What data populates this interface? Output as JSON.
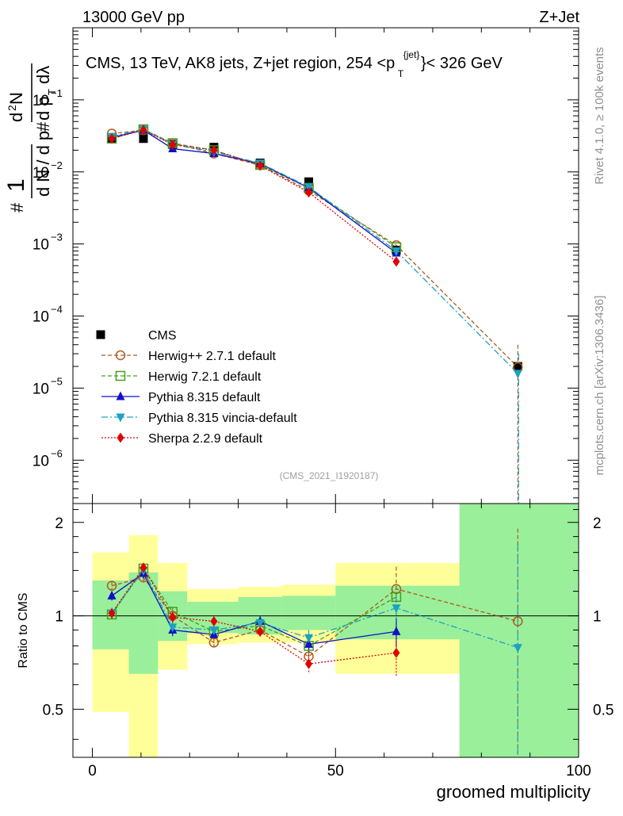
{
  "header": {
    "energy_label": "13000 GeV pp",
    "process_label": "Z+Jet"
  },
  "side_labels": {
    "rivet": "Rivet 4.1.0, ≥ 100k events",
    "mcplots": "mcplots.cern.ch [arXiv:1306.3436]"
  },
  "chart_data": {
    "type": "line",
    "title": "CMS, 13 TeV, AK8 jets, Z+jet region, 254 <p",
    "title_sup": "{jet}",
    "title_sub": "T",
    "title_tail": "}< 326 GeV",
    "analysis_tag": "(CMS_2021_I1920187)",
    "xlabel": "groomed multiplicity",
    "ylabel_main": "1/N dN/dpT d²N/dpT dλ",
    "ylabel_ratio": "Ratio to CMS",
    "xlim": [
      -4,
      100
    ],
    "ylim_main": [
      2.5e-07,
      1.0
    ],
    "ylim_ratio": [
      0.35,
      2.3
    ],
    "x_ticks": [
      "0",
      "50",
      "100"
    ],
    "y_ticks_main": [
      {
        "base": "10",
        "exp": "−1",
        "value": 0.1
      },
      {
        "base": "10",
        "exp": "−2",
        "value": 0.01
      },
      {
        "base": "10",
        "exp": "−3",
        "value": 0.001
      },
      {
        "base": "10",
        "exp": "−4",
        "value": 0.0001
      },
      {
        "base": "10",
        "exp": "−5",
        "value": 1e-05
      },
      {
        "base": "10",
        "exp": "−6",
        "value": 1e-06
      }
    ],
    "y_ticks_ratio": [
      {
        "label": "0.5",
        "value": 0.5
      },
      {
        "label": "1",
        "value": 1
      },
      {
        "label": "2",
        "value": 2
      }
    ],
    "legend_position": "middle-left",
    "data": {
      "name": "CMS",
      "x": [
        4,
        10.5,
        16.5,
        25,
        34.5,
        44.5,
        62.5,
        87.5
      ],
      "values": [
        0.029,
        0.029,
        0.024,
        0.022,
        0.0133,
        0.0073,
        0.00082,
        2e-05
      ]
    },
    "bands": [
      {
        "x0": 0,
        "x1": 7.5,
        "yl": 0.78,
        "yh": 1.3,
        "yyl": 0.49,
        "yyh": 1.6
      },
      {
        "x0": 7.5,
        "x1": 13.5,
        "yl": 0.65,
        "yh": 1.38,
        "yyl": 0.35,
        "yyh": 1.82
      },
      {
        "x0": 13.5,
        "x1": 19.5,
        "yl": 0.83,
        "yh": 1.2,
        "yyl": 0.67,
        "yyh": 1.48
      },
      {
        "x0": 19.5,
        "x1": 30,
        "yl": 0.88,
        "yh": 1.11,
        "yyl": 0.81,
        "yyh": 1.22
      },
      {
        "x0": 30,
        "x1": 39,
        "yl": 0.87,
        "yh": 1.15,
        "yyl": 0.82,
        "yyh": 1.24
      },
      {
        "x0": 39,
        "x1": 50,
        "yl": 0.9,
        "yh": 1.16,
        "yyl": 0.82,
        "yyh": 1.26
      },
      {
        "x0": 50,
        "x1": 75.5,
        "yl": 0.84,
        "yh": 1.25,
        "yyl": 0.65,
        "yyh": 1.48
      },
      {
        "x0": 75.5,
        "x1": 100,
        "yl": 0.35,
        "yh": 2.3,
        "yyl": 0.35,
        "yyh": 2.3
      }
    ],
    "series": [
      {
        "name": "Herwig++ 2.7.1 default",
        "color": "#b05a1e",
        "dash": "5,3",
        "marker": "open-circle",
        "x": [
          4,
          10.5,
          16.5,
          25,
          34.5,
          44.5,
          62.5,
          87.5
        ],
        "values": [
          0.034,
          0.038,
          0.025,
          0.018,
          0.0124,
          0.0055,
          0.00096,
          1.95e-05
        ],
        "ratio": [
          1.25,
          1.33,
          1.0,
          0.82,
          0.9,
          0.74,
          1.22,
          0.96
        ],
        "ratio_err": [
          0.04,
          0.05,
          0.04,
          0.03,
          0.04,
          0.05,
          0.22,
          0.95
        ]
      },
      {
        "name": "Herwig 7.2.1 default",
        "color": "#4a9a1e",
        "dash": "5,3",
        "marker": "open-square",
        "x": [
          4,
          10.5,
          16.5,
          25,
          34.5,
          44.5,
          62.5
        ],
        "values": [
          0.029,
          0.039,
          0.025,
          0.02,
          0.0125,
          0.006,
          0.0009
        ],
        "ratio": [
          1.01,
          1.42,
          1.03,
          0.89,
          0.93,
          0.8,
          1.15
        ],
        "ratio_err": [
          0.04,
          0.05,
          0.04,
          0.03,
          0.04,
          0.05,
          0.1
        ]
      },
      {
        "name": "Pythia 8.315 default",
        "color": "#1010c8",
        "dash": "",
        "marker": "triangle-up",
        "x": [
          4,
          10.5,
          16.5,
          25,
          34.5,
          44.5,
          62.5
        ],
        "values": [
          0.03,
          0.038,
          0.021,
          0.018,
          0.013,
          0.006,
          0.00075
        ],
        "ratio": [
          1.16,
          1.37,
          0.9,
          0.87,
          0.96,
          0.81,
          0.89
        ],
        "ratio_err": [
          0.04,
          0.05,
          0.04,
          0.03,
          0.04,
          0.05,
          0.1
        ]
      },
      {
        "name": "Pythia 8.315 vincia-default",
        "color": "#1aa2c4",
        "dash": "8,3,2,3",
        "marker": "triangle-down",
        "x": [
          4,
          10.5,
          16.5,
          25,
          34.5,
          44.5,
          62.5,
          87.5
        ],
        "values": [
          0.031,
          0.039,
          0.024,
          0.019,
          0.0132,
          0.0062,
          0.0008,
          1.6e-05
        ],
        "ratio": [
          1.02,
          1.4,
          0.92,
          0.9,
          0.95,
          0.85,
          1.06,
          0.79
        ],
        "ratio_err": [
          0.04,
          0.05,
          0.04,
          0.03,
          0.04,
          0.05,
          0.1,
          0.9
        ]
      },
      {
        "name": "Sherpa 2.2.9 default",
        "color": "#e00000",
        "dash": "2,2",
        "marker": "diamond",
        "x": [
          4,
          10.5,
          16.5,
          25,
          34.5,
          44.5,
          62.5
        ],
        "values": [
          0.029,
          0.038,
          0.024,
          0.02,
          0.0122,
          0.0052,
          0.00057
        ],
        "ratio": [
          1.02,
          1.43,
          0.99,
          0.96,
          0.89,
          0.7,
          0.76
        ],
        "ratio_err": [
          0.04,
          0.05,
          0.04,
          0.03,
          0.04,
          0.05,
          0.12
        ]
      }
    ]
  }
}
